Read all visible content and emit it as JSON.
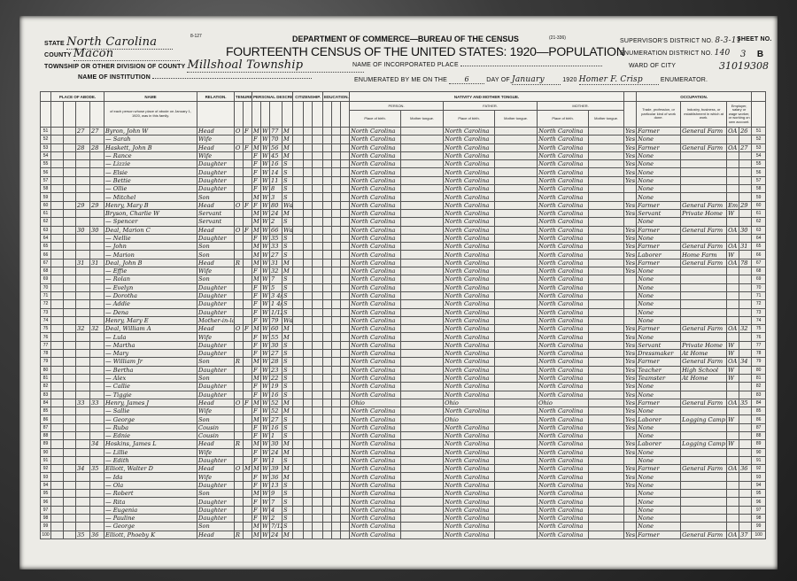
{
  "form": {
    "number": "8-127",
    "code": "(21-336)",
    "department": "DEPARTMENT OF COMMERCE—BUREAU OF THE CENSUS",
    "title": "FOURTEENTH CENSUS OF THE UNITED STATES: 1920—POPULATION"
  },
  "header": {
    "state_label": "STATE",
    "state": "North Carolina",
    "county_label": "COUNTY",
    "county": "Macon",
    "township_label": "TOWNSHIP OR OTHER DIVISION OF COUNTY",
    "township": "Millshoal Township",
    "institution_label": "NAME OF INSTITUTION",
    "institution": "",
    "place_label": "NAME OF INCORPORATED PLACE",
    "place": "",
    "enumerated_label": "ENUMERATED BY ME ON THE",
    "enum_day": "6",
    "day_of_label": "DAY OF",
    "enum_month": "January",
    "year": "1920",
    "enumerator": "Homer F. Crisp",
    "enumerator_label": "ENUMERATOR.",
    "ward_label": "WARD OF CITY",
    "supervisor_label": "SUPERVISOR'S DISTRICT NO.",
    "supervisor": "8-3-11",
    "ed_label": "ENUMERATION DISTRICT NO.",
    "ed": "140",
    "sheet_label": "SHEET NO.",
    "sheet": "3",
    "sheet_side": "B",
    "stamp": "31019308"
  },
  "columns": {
    "place_of_abode": "PLACE OF ABODE.",
    "name": "NAME",
    "name_note": "of each person whose place of abode on January 1, 1920, was in this family.",
    "relation": "RELATION.",
    "tenure": "TENURE.",
    "personal": "PERSONAL DESCRIPTION.",
    "citizenship": "CITIZENSHIP.",
    "education": "EDUCATION.",
    "nativity": "NATIVITY AND MOTHER TONGUE.",
    "person": "PERSON.",
    "father": "FATHER.",
    "mother": "MOTHER.",
    "place_of_birth": "Place of birth.",
    "mother_tongue": "Mother tongue.",
    "occupation": "OCCUPATION.",
    "trade": "Trade, profession, or particular kind of work done.",
    "industry": "Industry, business, or establishment in which at work.",
    "employer": "Employer, salary or wage worker, or working on own account."
  },
  "rows": [
    {
      "ln": "51",
      "dw": "27",
      "fm": "27",
      "name": "Byron, John W",
      "rel": "Head",
      "ten": "O",
      "mtg": "F",
      "sex": "M",
      "race": "W",
      "age": "77",
      "mar": "M",
      "bp": "North Carolina",
      "fbp": "North Carolina",
      "mbp": "North Carolina",
      "eng": "Yes",
      "occ": "Farmer",
      "ind": "General Farm",
      "cls": "OA",
      "farm": "26"
    },
    {
      "ln": "52",
      "name": "— Sarah",
      "rel": "Wife",
      "sex": "F",
      "race": "W",
      "age": "70",
      "mar": "M",
      "bp": "North Carolina",
      "fbp": "North Carolina",
      "mbp": "North Carolina",
      "eng": "Yes",
      "occ": "None"
    },
    {
      "ln": "53",
      "dw": "28",
      "fm": "28",
      "name": "Haskett, John B",
      "rel": "Head",
      "ten": "O",
      "mtg": "F",
      "sex": "M",
      "race": "W",
      "age": "56",
      "mar": "M",
      "bp": "North Carolina",
      "fbp": "North Carolina",
      "mbp": "North Carolina",
      "eng": "Yes",
      "occ": "Farmer",
      "ind": "General Farm",
      "cls": "OA",
      "farm": "27"
    },
    {
      "ln": "54",
      "name": "— Rance",
      "rel": "Wife",
      "sex": "F",
      "race": "W",
      "age": "45",
      "mar": "M",
      "bp": "North Carolina",
      "fbp": "North Carolina",
      "mbp": "North Carolina",
      "eng": "Yes",
      "occ": "None"
    },
    {
      "ln": "55",
      "name": "— Lizzie",
      "rel": "Daughter",
      "sex": "F",
      "race": "W",
      "age": "16",
      "mar": "S",
      "bp": "North Carolina",
      "fbp": "North Carolina",
      "mbp": "North Carolina",
      "eng": "Yes",
      "occ": "None"
    },
    {
      "ln": "56",
      "name": "— Elsie",
      "rel": "Daughter",
      "sex": "F",
      "race": "W",
      "age": "14",
      "mar": "S",
      "bp": "North Carolina",
      "fbp": "North Carolina",
      "mbp": "North Carolina",
      "eng": "Yes",
      "occ": "None"
    },
    {
      "ln": "57",
      "name": "— Bettie",
      "rel": "Daughter",
      "sex": "F",
      "race": "W",
      "age": "11",
      "mar": "S",
      "bp": "North Carolina",
      "fbp": "North Carolina",
      "mbp": "North Carolina",
      "eng": "Yes",
      "occ": "None"
    },
    {
      "ln": "58",
      "name": "— Ollie",
      "rel": "Daughter",
      "sex": "F",
      "race": "W",
      "age": "8",
      "mar": "S",
      "bp": "North Carolina",
      "fbp": "North Carolina",
      "mbp": "North Carolina",
      "occ": "None"
    },
    {
      "ln": "59",
      "name": "— Mitchel",
      "rel": "Son",
      "sex": "M",
      "race": "W",
      "age": "3",
      "mar": "S",
      "bp": "North Carolina",
      "fbp": "North Carolina",
      "mbp": "North Carolina",
      "occ": "None"
    },
    {
      "ln": "60",
      "dw": "29",
      "fm": "29",
      "name": "Henry, Mary B",
      "rel": "Head",
      "ten": "O",
      "mtg": "F",
      "sex": "F",
      "race": "W",
      "age": "80",
      "mar": "Wd",
      "bp": "North Carolina",
      "fbp": "North Carolina",
      "mbp": "North Carolina",
      "eng": "Yes",
      "occ": "Farmer",
      "ind": "General Farm",
      "cls": "Em",
      "farm": "29"
    },
    {
      "ln": "61",
      "name": "Bryson, Charlie W",
      "rel": "Servant",
      "sex": "M",
      "race": "W",
      "age": "24",
      "mar": "M",
      "bp": "North Carolina",
      "fbp": "North Carolina",
      "mbp": "North Carolina",
      "eng": "Yes",
      "occ": "Servant",
      "ind": "Private Home",
      "cls": "W"
    },
    {
      "ln": "62",
      "name": "— Spencer",
      "rel": "Servant",
      "sex": "M",
      "race": "W",
      "age": "2",
      "mar": "S",
      "bp": "North Carolina",
      "fbp": "North Carolina",
      "mbp": "North Carolina",
      "occ": "None"
    },
    {
      "ln": "63",
      "dw": "30",
      "fm": "30",
      "name": "Deal, Marion C",
      "rel": "Head",
      "ten": "O",
      "mtg": "F",
      "sex": "M",
      "race": "W",
      "age": "66",
      "mar": "Wd",
      "bp": "North Carolina",
      "fbp": "North Carolina",
      "mbp": "North Carolina",
      "eng": "Yes",
      "occ": "Farmer",
      "ind": "General Farm",
      "cls": "OA",
      "farm": "30"
    },
    {
      "ln": "64",
      "name": "— Nellie",
      "rel": "Daughter",
      "sex": "F",
      "race": "W",
      "age": "35",
      "mar": "S",
      "bp": "North Carolina",
      "fbp": "North Carolina",
      "mbp": "North Carolina",
      "eng": "Yes",
      "occ": "None"
    },
    {
      "ln": "65",
      "name": "— John",
      "rel": "Son",
      "sex": "M",
      "race": "W",
      "age": "33",
      "mar": "S",
      "bp": "North Carolina",
      "fbp": "North Carolina",
      "mbp": "North Carolina",
      "eng": "Yes",
      "occ": "Farmer",
      "ind": "General Farm",
      "cls": "OA",
      "farm": "31"
    },
    {
      "ln": "66",
      "name": "— Marion",
      "rel": "Son",
      "sex": "M",
      "race": "W",
      "age": "27",
      "mar": "S",
      "bp": "North Carolina",
      "fbp": "North Carolina",
      "mbp": "North Carolina",
      "eng": "Yes",
      "occ": "Laborer",
      "ind": "Home Farm",
      "cls": "W"
    },
    {
      "ln": "67",
      "dw": "31",
      "fm": "31",
      "name": "Deal, John B",
      "rel": "Head",
      "ten": "R",
      "sex": "M",
      "race": "W",
      "age": "31",
      "mar": "M",
      "bp": "North Carolina",
      "fbp": "North Carolina",
      "mbp": "North Carolina",
      "eng": "Yes",
      "occ": "Farmer",
      "ind": "General Farm",
      "cls": "OA",
      "farm": "78"
    },
    {
      "ln": "68",
      "name": "— Effie",
      "rel": "Wife",
      "sex": "F",
      "race": "W",
      "age": "32",
      "mar": "M",
      "bp": "North Carolina",
      "fbp": "North Carolina",
      "mbp": "North Carolina",
      "eng": "Yes",
      "occ": "None"
    },
    {
      "ln": "69",
      "name": "— Rolan",
      "rel": "Son",
      "sex": "M",
      "race": "W",
      "age": "7",
      "mar": "S",
      "bp": "North Carolina",
      "fbp": "North Carolina",
      "mbp": "North Carolina",
      "occ": "None"
    },
    {
      "ln": "70",
      "name": "— Evelyn",
      "rel": "Daughter",
      "sex": "F",
      "race": "W",
      "age": "5",
      "mar": "S",
      "bp": "North Carolina",
      "fbp": "North Carolina",
      "mbp": "North Carolina",
      "occ": "None"
    },
    {
      "ln": "71",
      "name": "— Dorotha",
      "rel": "Daughter",
      "sex": "F",
      "race": "W",
      "age": "3 4/12",
      "mar": "S",
      "bp": "North Carolina",
      "fbp": "North Carolina",
      "mbp": "North Carolina",
      "occ": "None"
    },
    {
      "ln": "72",
      "name": "— Addie",
      "rel": "Daughter",
      "sex": "F",
      "race": "W",
      "age": "1 4/12",
      "mar": "S",
      "bp": "North Carolina",
      "fbp": "North Carolina",
      "mbp": "North Carolina",
      "occ": "None"
    },
    {
      "ln": "73",
      "name": "— Dena",
      "rel": "Daughter",
      "sex": "F",
      "race": "W",
      "age": "1/12",
      "mar": "S",
      "bp": "North Carolina",
      "fbp": "North Carolina",
      "mbp": "North Carolina",
      "occ": "None"
    },
    {
      "ln": "74",
      "name": "Henry, Mary E",
      "rel": "Mother-in-law",
      "sex": "F",
      "race": "W",
      "age": "79",
      "mar": "Wd",
      "bp": "North Carolina",
      "fbp": "North Carolina",
      "mbp": "North Carolina",
      "occ": "None"
    },
    {
      "ln": "75",
      "dw": "32",
      "fm": "32",
      "name": "Deal, William A",
      "rel": "Head",
      "ten": "O",
      "mtg": "F",
      "sex": "M",
      "race": "W",
      "age": "60",
      "mar": "M",
      "bp": "North Carolina",
      "fbp": "North Carolina",
      "mbp": "North Carolina",
      "eng": "Yes",
      "occ": "Farmer",
      "ind": "General Farm",
      "cls": "OA",
      "farm": "32"
    },
    {
      "ln": "76",
      "name": "— Lula",
      "rel": "Wife",
      "sex": "F",
      "race": "W",
      "age": "55",
      "mar": "M",
      "bp": "North Carolina",
      "fbp": "North Carolina",
      "mbp": "North Carolina",
      "eng": "Yes",
      "occ": "None"
    },
    {
      "ln": "77",
      "name": "— Martha",
      "rel": "Daughter",
      "sex": "F",
      "race": "W",
      "age": "30",
      "mar": "S",
      "bp": "North Carolina",
      "fbp": "North Carolina",
      "mbp": "North Carolina",
      "eng": "Yes",
      "occ": "Servant",
      "ind": "Private Home",
      "cls": "W"
    },
    {
      "ln": "78",
      "name": "— Mary",
      "rel": "Daughter",
      "sex": "F",
      "race": "W",
      "age": "27",
      "mar": "S",
      "bp": "North Carolina",
      "fbp": "North Carolina",
      "mbp": "North Carolina",
      "eng": "Yes",
      "occ": "Dressmaker",
      "ind": "At Home",
      "cls": "W"
    },
    {
      "ln": "79",
      "name": "— William Jr",
      "rel": "Son",
      "ten": "R",
      "sex": "M",
      "race": "W",
      "age": "28",
      "mar": "S",
      "bp": "North Carolina",
      "fbp": "North Carolina",
      "mbp": "North Carolina",
      "eng": "Yes",
      "occ": "Farmer",
      "ind": "General Farm",
      "cls": "OA",
      "farm": "34"
    },
    {
      "ln": "80",
      "name": "— Bertha",
      "rel": "Daughter",
      "sex": "F",
      "race": "W",
      "age": "23",
      "mar": "S",
      "bp": "North Carolina",
      "fbp": "North Carolina",
      "mbp": "North Carolina",
      "eng": "Yes",
      "occ": "Teacher",
      "ind": "High School",
      "cls": "W"
    },
    {
      "ln": "81",
      "name": "— Alex",
      "rel": "Son",
      "sex": "M",
      "race": "W",
      "age": "22",
      "mar": "S",
      "bp": "North Carolina",
      "fbp": "North Carolina",
      "mbp": "North Carolina",
      "eng": "Yes",
      "occ": "Teamster",
      "ind": "At Home",
      "cls": "W"
    },
    {
      "ln": "82",
      "name": "— Callie",
      "rel": "Daughter",
      "sex": "F",
      "race": "W",
      "age": "19",
      "mar": "S",
      "bp": "North Carolina",
      "fbp": "North Carolina",
      "mbp": "North Carolina",
      "eng": "Yes",
      "occ": "None"
    },
    {
      "ln": "83",
      "name": "— Tiggie",
      "rel": "Daughter",
      "sex": "F",
      "race": "W",
      "age": "16",
      "mar": "S",
      "bp": "North Carolina",
      "fbp": "North Carolina",
      "mbp": "North Carolina",
      "eng": "Yes",
      "occ": "None"
    },
    {
      "ln": "84",
      "dw": "33",
      "fm": "33",
      "name": "Henry, James J",
      "rel": "Head",
      "ten": "O",
      "mtg": "F",
      "sex": "M",
      "race": "W",
      "age": "52",
      "mar": "M",
      "bp": "Ohio",
      "fbp": "Ohio",
      "mbp": "Ohio",
      "eng": "Yes",
      "occ": "Farmer",
      "ind": "General Farm",
      "cls": "OA",
      "farm": "35"
    },
    {
      "ln": "85",
      "name": "— Sallie",
      "rel": "Wife",
      "sex": "F",
      "race": "W",
      "age": "52",
      "mar": "M",
      "bp": "North Carolina",
      "fbp": "North Carolina",
      "mbp": "North Carolina",
      "eng": "Yes",
      "occ": "None"
    },
    {
      "ln": "86",
      "name": "— George",
      "rel": "Son",
      "sex": "M",
      "race": "W",
      "age": "27",
      "mar": "S",
      "bp": "North Carolina",
      "fbp": "Ohio",
      "mbp": "North Carolina",
      "eng": "Yes",
      "occ": "Laborer",
      "ind": "Logging Camp",
      "cls": "W"
    },
    {
      "ln": "87",
      "name": "— Ruba",
      "rel": "Cousin",
      "sex": "F",
      "race": "W",
      "age": "16",
      "mar": "S",
      "bp": "North Carolina",
      "fbp": "North Carolina",
      "mbp": "North Carolina",
      "eng": "Yes",
      "occ": "None"
    },
    {
      "ln": "88",
      "name": "— Ednie",
      "rel": "Cousin",
      "sex": "F",
      "race": "W",
      "age": "1",
      "mar": "S",
      "bp": "North Carolina",
      "fbp": "North Carolina",
      "mbp": "North Carolina",
      "occ": "None"
    },
    {
      "ln": "89",
      "fm": "34",
      "name": "Hoskins, James L",
      "rel": "Head",
      "ten": "R",
      "sex": "M",
      "race": "W",
      "age": "30",
      "mar": "M",
      "bp": "North Carolina",
      "fbp": "North Carolina",
      "mbp": "North Carolina",
      "eng": "Yes",
      "occ": "Laborer",
      "ind": "Logging Camp",
      "cls": "W"
    },
    {
      "ln": "90",
      "name": "— Lillie",
      "rel": "Wife",
      "sex": "F",
      "race": "W",
      "age": "24",
      "mar": "M",
      "bp": "North Carolina",
      "fbp": "North Carolina",
      "mbp": "North Carolina",
      "eng": "Yes",
      "occ": "None"
    },
    {
      "ln": "91",
      "name": "— Edith",
      "rel": "Daughter",
      "sex": "F",
      "race": "W",
      "age": "1",
      "mar": "S",
      "bp": "North Carolina",
      "fbp": "North Carolina",
      "mbp": "North Carolina",
      "occ": "None"
    },
    {
      "ln": "92",
      "dw": "34",
      "fm": "35",
      "name": "Elliott, Walter D",
      "rel": "Head",
      "ten": "O",
      "mtg": "M",
      "sex": "M",
      "race": "W",
      "age": "39",
      "mar": "M",
      "bp": "North Carolina",
      "fbp": "North Carolina",
      "mbp": "North Carolina",
      "eng": "Yes",
      "occ": "Farmer",
      "ind": "General Farm",
      "cls": "OA",
      "farm": "36"
    },
    {
      "ln": "93",
      "name": "— Ida",
      "rel": "Wife",
      "sex": "F",
      "race": "W",
      "age": "36",
      "mar": "M",
      "bp": "North Carolina",
      "fbp": "North Carolina",
      "mbp": "North Carolina",
      "eng": "Yes",
      "occ": "None"
    },
    {
      "ln": "94",
      "name": "— Ola",
      "rel": "Daughter",
      "sex": "F",
      "race": "W",
      "age": "13",
      "mar": "S",
      "bp": "North Carolina",
      "fbp": "North Carolina",
      "mbp": "North Carolina",
      "eng": "Yes",
      "occ": "None"
    },
    {
      "ln": "95",
      "name": "— Robert",
      "rel": "Son",
      "sex": "M",
      "race": "W",
      "age": "9",
      "mar": "S",
      "bp": "North Carolina",
      "fbp": "North Carolina",
      "mbp": "North Carolina",
      "occ": "None"
    },
    {
      "ln": "96",
      "name": "— Rita",
      "rel": "Daughter",
      "sex": "F",
      "race": "W",
      "age": "7",
      "mar": "S",
      "bp": "North Carolina",
      "fbp": "North Carolina",
      "mbp": "North Carolina",
      "occ": "None"
    },
    {
      "ln": "97",
      "name": "— Eugenia",
      "rel": "Daughter",
      "sex": "F",
      "race": "W",
      "age": "4",
      "mar": "S",
      "bp": "North Carolina",
      "fbp": "North Carolina",
      "mbp": "North Carolina",
      "occ": "None"
    },
    {
      "ln": "98",
      "name": "— Pauline",
      "rel": "Daughter",
      "sex": "F",
      "race": "W",
      "age": "2",
      "mar": "S",
      "bp": "North Carolina",
      "fbp": "North Carolina",
      "mbp": "North Carolina",
      "occ": "None"
    },
    {
      "ln": "99",
      "name": "— George",
      "rel": "Son",
      "sex": "M",
      "race": "W",
      "age": "7/12",
      "mar": "S",
      "bp": "North Carolina",
      "fbp": "North Carolina",
      "mbp": "North Carolina",
      "occ": "None"
    },
    {
      "ln": "100",
      "dw": "35",
      "fm": "36",
      "name": "Elliott, Phoeby K",
      "rel": "Head",
      "ten": "R",
      "sex": "M",
      "race": "W",
      "age": "24",
      "mar": "M",
      "bp": "North Carolina",
      "fbp": "North Carolina",
      "mbp": "North Carolina",
      "eng": "Yes",
      "occ": "Farmer",
      "ind": "General Farm",
      "cls": "OA",
      "farm": "37"
    }
  ]
}
